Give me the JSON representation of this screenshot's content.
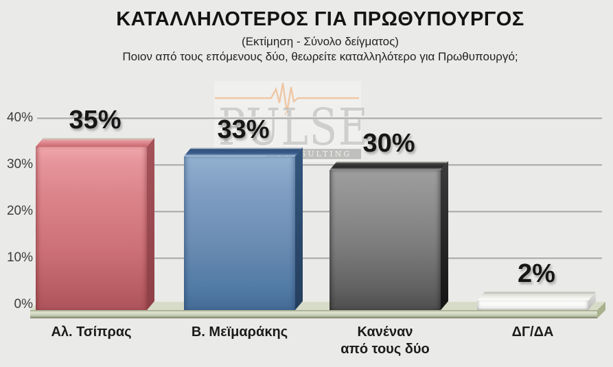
{
  "header": {
    "title": "ΚΑΤΑΛΛΗΛΟΤΕΡΟΣ ΓΙΑ ΠΡΩΘΥΠΟΥΡΓΟΣ",
    "subtitle": "(Εκτίμηση - Σύνολο δείγματος)",
    "question": "Ποιον από τους επόμενους δύο, θεωρείτε καταλληλότερο για Πρωθυπουργό;"
  },
  "watermark": {
    "brand": "PULSE",
    "brand_sub": "CONSULTING",
    "heartbeat_color": "#efc096"
  },
  "chart_data": {
    "type": "bar",
    "title": "ΚΑΤΑΛΛΗΛΟΤΕΡΟΣ ΓΙΑ ΠΡΩΘΥΠΟΥΡΓΟΣ",
    "subtitle": "(Εκτίμηση - Σύνολο δείγματος)",
    "question": "Ποιον από τους επόμενους δύο, θεωρείτε καταλληλότερο για Πρωθυπουργό;",
    "categories": [
      "Αλ. Τσίπρας",
      "Β. Μεϊμαράκης",
      "Κανέναν\nαπό τους δύο",
      "ΔΓ/ΔΑ"
    ],
    "values": [
      35,
      33,
      30,
      2
    ],
    "value_labels": [
      "35%",
      "33%",
      "30%",
      "2%"
    ],
    "bar_color_names": [
      "red",
      "blue",
      "gray",
      "white"
    ],
    "bar_front_colors": [
      "#d9838a",
      "#6c8db4",
      "#7d7d7d",
      "#f4f4f2"
    ],
    "yticks": [
      "40%",
      "30%",
      "20%",
      "10%",
      "0%"
    ],
    "ytick_values": [
      40,
      30,
      20,
      10,
      0
    ],
    "ylim": [
      0,
      40
    ],
    "grid": true,
    "legend": false,
    "style": "3d-column",
    "floor_color": "#ccd3ba"
  }
}
